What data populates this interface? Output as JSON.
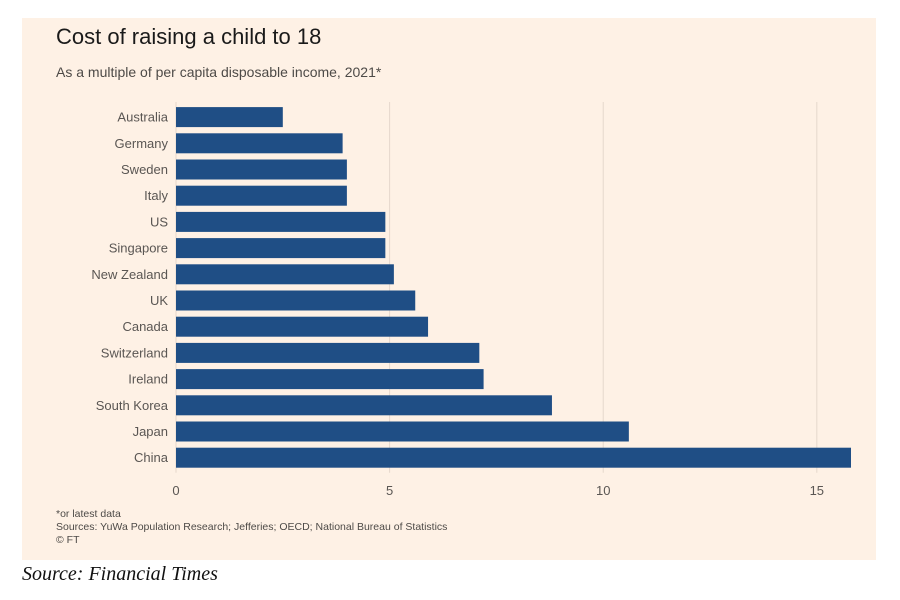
{
  "chart_data": {
    "type": "bar",
    "orientation": "horizontal",
    "title": "Cost of raising a child to 18",
    "subtitle": "As a multiple of per capita disposable income, 2021*",
    "categories": [
      "Australia",
      "Germany",
      "Sweden",
      "Italy",
      "US",
      "Singapore",
      "New Zealand",
      "UK",
      "Canada",
      "Switzerland",
      "Ireland",
      "South Korea",
      "Japan",
      "China"
    ],
    "values": [
      2.5,
      3.9,
      4.0,
      4.0,
      4.9,
      4.9,
      5.1,
      5.6,
      5.9,
      7.1,
      7.2,
      8.8,
      10.6,
      15.8
    ],
    "xlim": [
      0,
      15.8
    ],
    "xticks": [
      0,
      5,
      10,
      15
    ],
    "grid": true,
    "bar_color": "#1F4E85",
    "grid_color": "#E5D8CC",
    "xlabel": "",
    "ylabel": ""
  },
  "notes": {
    "footnote": "*or latest data",
    "sources": "Sources: YuWa Population Research; Jefferies; OECD; National Bureau of Statistics",
    "credit": "© FT"
  },
  "caption": "Source: Financial Times"
}
